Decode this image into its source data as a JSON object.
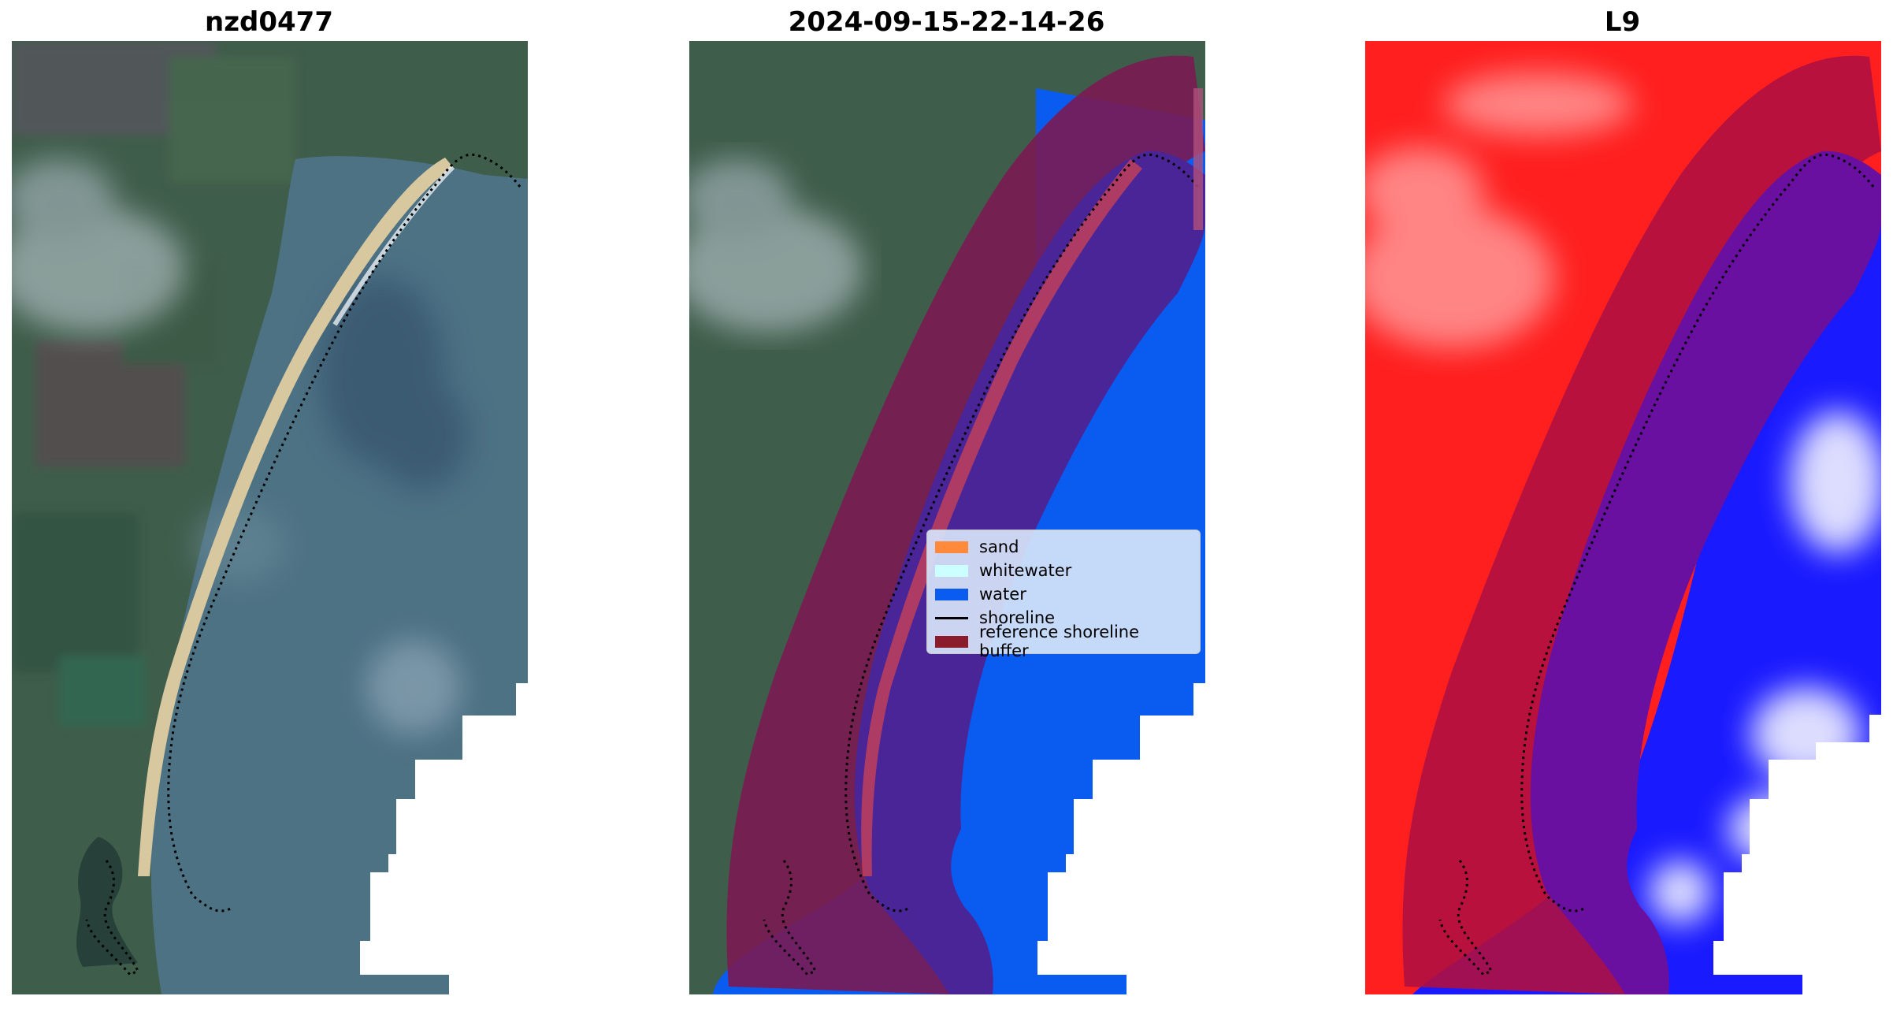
{
  "panels": [
    {
      "title": "nzd0477"
    },
    {
      "title": "2024-09-15-22-14-26"
    },
    {
      "title": "L9"
    }
  ],
  "legend": {
    "items": [
      {
        "label": "sand",
        "color": "#ff8a3c",
        "kind": "patch"
      },
      {
        "label": "whitewater",
        "color": "#ccffff",
        "kind": "patch"
      },
      {
        "label": "water",
        "color": "#0a5cf0",
        "kind": "patch"
      },
      {
        "label": "shoreline",
        "color": "#000000",
        "kind": "line"
      },
      {
        "label": "reference shoreline buffer",
        "color": "#8b1c2c",
        "kind": "patch"
      }
    ]
  },
  "colors": {
    "land_green": "#3d5c48",
    "ocean_teal": "#4f7585",
    "sand_beige": "#d8c8a0",
    "buffer_maroon": "#7a1a52",
    "buffer_water_purple": "#4a2598",
    "water_blue": "#0a5cf0",
    "index_red": "#ff1f1f",
    "index_blue": "#1a1aff"
  },
  "icons": [
    "shoreline-dotted-line",
    "buffer-band"
  ]
}
